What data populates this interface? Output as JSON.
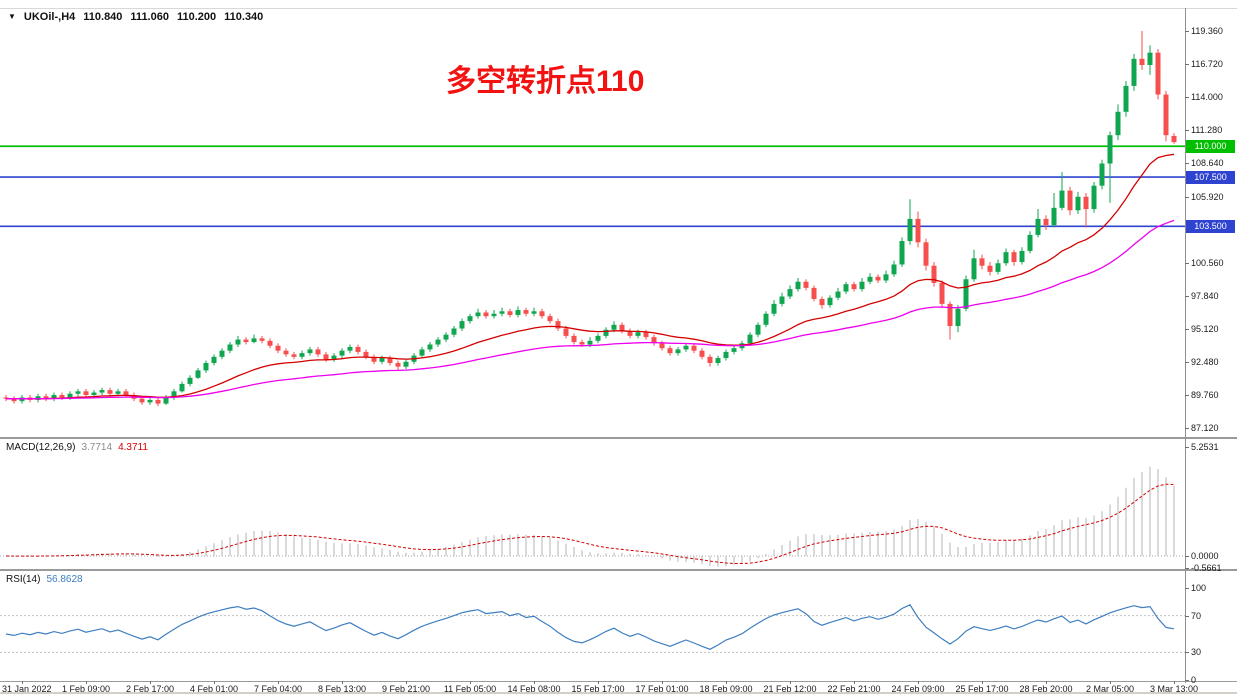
{
  "window": {
    "symbol_period": "UKOil-,H4",
    "open": "110.840",
    "high": "111.060",
    "low": "110.200",
    "close": "110.340",
    "annotation": "多空转折点110"
  },
  "main_chart": {
    "price_axis_labels": [
      "119.360",
      "116.720",
      "114.000",
      "111.280",
      "108.640",
      "105.920",
      "100.560",
      "97.840",
      "95.120",
      "92.480",
      "89.760",
      "87.120"
    ],
    "hlines": [
      {
        "price": 110.0,
        "label": "110.000",
        "color": "#00be00"
      },
      {
        "price": 107.5,
        "label": "107.500",
        "color": "#2e43d0"
      },
      {
        "price": 103.5,
        "label": "103.500",
        "color": "#2e43d0"
      }
    ]
  },
  "macd": {
    "label": "MACD(12,26,9)",
    "main_value": "3.7714",
    "signal_value": "4.3711",
    "fast": 12,
    "slow": 26,
    "signal": 9,
    "axis_labels": [
      {
        "v": 5.2531,
        "text": "5.2531"
      },
      {
        "v": 0,
        "text": "0.0000"
      },
      {
        "v": -0.5661,
        "text": "-0.5661"
      }
    ]
  },
  "rsi": {
    "label": "RSI(14)",
    "value": "56.8628",
    "period": 14,
    "levels": [
      70,
      30
    ],
    "axis_labels": [
      {
        "v": 100,
        "text": "100"
      },
      {
        "v": 70,
        "text": "70"
      },
      {
        "v": 30,
        "text": "30"
      },
      {
        "v": 0,
        "text": "0"
      }
    ]
  },
  "time_axis": [
    {
      "bar": 2,
      "text": "31 Jan 2022"
    },
    {
      "bar": 10,
      "text": "1 Feb 09:00"
    },
    {
      "bar": 18,
      "text": "2 Feb 17:00"
    },
    {
      "bar": 26,
      "text": "4 Feb 01:00"
    },
    {
      "bar": 34,
      "text": "7 Feb 04:00"
    },
    {
      "bar": 42,
      "text": "8 Feb 13:00"
    },
    {
      "bar": 50,
      "text": "9 Feb 21:00"
    },
    {
      "bar": 58,
      "text": "11 Feb 05:00"
    },
    {
      "bar": 66,
      "text": "14 Feb 08:00"
    },
    {
      "bar": 74,
      "text": "15 Feb 17:00"
    },
    {
      "bar": 82,
      "text": "17 Feb 01:00"
    },
    {
      "bar": 90,
      "text": "18 Feb 09:00"
    },
    {
      "bar": 98,
      "text": "21 Feb 12:00"
    },
    {
      "bar": 106,
      "text": "22 Feb 21:00"
    },
    {
      "bar": 114,
      "text": "24 Feb 09:00"
    },
    {
      "bar": 122,
      "text": "25 Feb 17:00"
    },
    {
      "bar": 130,
      "text": "28 Feb 20:00"
    },
    {
      "bar": 138,
      "text": "2 Mar 05:00"
    },
    {
      "bar": 146,
      "text": "3 Mar 13:00"
    }
  ],
  "colors": {
    "candle_up": "#0fa64f",
    "candle_down": "#f74e4e",
    "ma_fast": "#d40000",
    "ma_slow": "#ee00ee",
    "hline_green": "#00be00",
    "hline_blue": "#2e43d0",
    "macd_hist": "#b4b4b4",
    "macd_signal": "#d40000",
    "rsi_line": "#3e7fc1",
    "annotation": "#f31212"
  },
  "chart_data": {
    "type": "candlestick",
    "symbol": "UKOil-,H4",
    "note": "H4 candles [open,high,low,close], left-to-right",
    "candles": [
      [
        89.6,
        89.8,
        89.3,
        89.5
      ],
      [
        89.5,
        89.7,
        89.1,
        89.3
      ],
      [
        89.3,
        89.8,
        89.1,
        89.6
      ],
      [
        89.6,
        89.8,
        89.2,
        89.4
      ],
      [
        89.4,
        89.9,
        89.2,
        89.7
      ],
      [
        89.7,
        89.9,
        89.3,
        89.5
      ],
      [
        89.5,
        90.0,
        89.3,
        89.8
      ],
      [
        89.8,
        90.0,
        89.4,
        89.6
      ],
      [
        89.6,
        90.1,
        89.4,
        89.9
      ],
      [
        89.9,
        90.3,
        89.7,
        90.1
      ],
      [
        90.1,
        90.3,
        89.6,
        89.8
      ],
      [
        89.8,
        90.2,
        89.6,
        90.0
      ],
      [
        90.0,
        90.4,
        89.8,
        90.2
      ],
      [
        90.2,
        90.4,
        89.7,
        89.9
      ],
      [
        89.9,
        90.3,
        89.7,
        90.1
      ],
      [
        90.1,
        90.3,
        89.6,
        89.8
      ],
      [
        89.8,
        90.0,
        89.3,
        89.5
      ],
      [
        89.5,
        89.7,
        89.0,
        89.2
      ],
      [
        89.2,
        89.6,
        89.0,
        89.4
      ],
      [
        89.4,
        89.6,
        88.9,
        89.1
      ],
      [
        89.1,
        89.8,
        89.0,
        89.6
      ],
      [
        89.6,
        90.3,
        89.4,
        90.1
      ],
      [
        90.1,
        90.9,
        90.0,
        90.7
      ],
      [
        90.7,
        91.4,
        90.5,
        91.2
      ],
      [
        91.2,
        92.0,
        91.1,
        91.8
      ],
      [
        91.8,
        92.6,
        91.6,
        92.4
      ],
      [
        92.4,
        93.1,
        92.2,
        92.9
      ],
      [
        92.9,
        93.6,
        92.7,
        93.4
      ],
      [
        93.4,
        94.1,
        93.2,
        93.9
      ],
      [
        93.9,
        94.6,
        93.7,
        94.3
      ],
      [
        94.3,
        94.5,
        93.9,
        94.1
      ],
      [
        94.1,
        94.7,
        94.0,
        94.4
      ],
      [
        94.4,
        94.6,
        94.0,
        94.2
      ],
      [
        94.2,
        94.4,
        93.6,
        93.8
      ],
      [
        93.8,
        94.0,
        93.2,
        93.4
      ],
      [
        93.4,
        93.6,
        92.9,
        93.1
      ],
      [
        93.1,
        93.3,
        92.7,
        92.9
      ],
      [
        92.9,
        93.4,
        92.7,
        93.2
      ],
      [
        93.2,
        93.7,
        93.0,
        93.5
      ],
      [
        93.5,
        93.7,
        92.9,
        93.1
      ],
      [
        93.1,
        93.3,
        92.5,
        92.7
      ],
      [
        92.7,
        93.2,
        92.5,
        93.0
      ],
      [
        93.0,
        93.6,
        92.8,
        93.4
      ],
      [
        93.4,
        93.9,
        93.2,
        93.7
      ],
      [
        93.7,
        93.9,
        93.1,
        93.3
      ],
      [
        93.3,
        93.5,
        92.7,
        92.9
      ],
      [
        92.9,
        93.1,
        92.3,
        92.5
      ],
      [
        92.5,
        93.0,
        92.3,
        92.8
      ],
      [
        92.8,
        93.0,
        92.2,
        92.4
      ],
      [
        92.4,
        92.6,
        91.8,
        92.1
      ],
      [
        92.1,
        92.7,
        91.9,
        92.5
      ],
      [
        92.5,
        93.2,
        92.3,
        93.0
      ],
      [
        93.0,
        93.7,
        92.8,
        93.5
      ],
      [
        93.5,
        94.1,
        93.3,
        93.9
      ],
      [
        93.9,
        94.5,
        93.7,
        94.3
      ],
      [
        94.3,
        94.9,
        94.1,
        94.7
      ],
      [
        94.7,
        95.4,
        94.5,
        95.2
      ],
      [
        95.2,
        96.0,
        95.0,
        95.8
      ],
      [
        95.8,
        96.4,
        95.6,
        96.2
      ],
      [
        96.2,
        96.8,
        96.0,
        96.5
      ],
      [
        96.5,
        96.7,
        96.0,
        96.2
      ],
      [
        96.2,
        96.7,
        96.0,
        96.4
      ],
      [
        96.4,
        96.9,
        96.2,
        96.6
      ],
      [
        96.6,
        96.8,
        96.1,
        96.3
      ],
      [
        96.3,
        97.0,
        96.1,
        96.7
      ],
      [
        96.7,
        96.9,
        96.2,
        96.4
      ],
      [
        96.4,
        96.9,
        96.2,
        96.6
      ],
      [
        96.6,
        96.8,
        96.0,
        96.2
      ],
      [
        96.2,
        96.4,
        95.6,
        95.8
      ],
      [
        95.8,
        96.0,
        95.0,
        95.2
      ],
      [
        95.2,
        95.4,
        94.4,
        94.6
      ],
      [
        94.6,
        94.8,
        93.9,
        94.1
      ],
      [
        94.1,
        94.3,
        93.7,
        93.9
      ],
      [
        93.9,
        94.5,
        93.7,
        94.2
      ],
      [
        94.2,
        94.8,
        94.0,
        94.6
      ],
      [
        94.6,
        95.3,
        94.4,
        95.1
      ],
      [
        95.1,
        95.8,
        94.9,
        95.5
      ],
      [
        95.5,
        95.7,
        94.8,
        95.0
      ],
      [
        95.0,
        95.2,
        94.4,
        94.6
      ],
      [
        94.6,
        95.1,
        94.4,
        94.9
      ],
      [
        94.9,
        95.1,
        94.3,
        94.5
      ],
      [
        94.5,
        94.7,
        93.8,
        94.0
      ],
      [
        94.0,
        94.2,
        93.4,
        93.6
      ],
      [
        93.6,
        93.8,
        93.0,
        93.2
      ],
      [
        93.2,
        93.7,
        93.0,
        93.5
      ],
      [
        93.5,
        94.0,
        93.3,
        93.8
      ],
      [
        93.8,
        94.0,
        93.2,
        93.4
      ],
      [
        93.4,
        93.6,
        92.7,
        92.9
      ],
      [
        92.9,
        93.1,
        92.1,
        92.4
      ],
      [
        92.4,
        93.0,
        92.2,
        92.8
      ],
      [
        92.8,
        93.5,
        92.6,
        93.3
      ],
      [
        93.3,
        93.9,
        93.1,
        93.6
      ],
      [
        93.6,
        94.2,
        93.4,
        94.0
      ],
      [
        94.0,
        94.9,
        93.8,
        94.7
      ],
      [
        94.7,
        95.7,
        94.5,
        95.5
      ],
      [
        95.5,
        96.6,
        95.3,
        96.4
      ],
      [
        96.4,
        97.5,
        96.2,
        97.2
      ],
      [
        97.2,
        98.1,
        97.0,
        97.8
      ],
      [
        97.8,
        98.7,
        97.6,
        98.4
      ],
      [
        98.4,
        99.3,
        98.2,
        99.0
      ],
      [
        99.0,
        99.2,
        98.3,
        98.5
      ],
      [
        98.5,
        98.7,
        97.4,
        97.6
      ],
      [
        97.6,
        97.8,
        96.8,
        97.1
      ],
      [
        97.1,
        97.9,
        96.9,
        97.7
      ],
      [
        97.7,
        98.5,
        97.5,
        98.2
      ],
      [
        98.2,
        99.0,
        98.0,
        98.8
      ],
      [
        98.8,
        99.0,
        98.2,
        98.4
      ],
      [
        98.4,
        99.3,
        98.2,
        99.0
      ],
      [
        99.0,
        99.7,
        98.8,
        99.4
      ],
      [
        99.4,
        99.6,
        98.9,
        99.1
      ],
      [
        99.1,
        99.9,
        98.9,
        99.6
      ],
      [
        99.6,
        100.7,
        99.4,
        100.4
      ],
      [
        100.4,
        102.6,
        100.2,
        102.3
      ],
      [
        102.3,
        105.7,
        102.0,
        104.1
      ],
      [
        104.1,
        104.7,
        101.8,
        102.2
      ],
      [
        102.2,
        102.5,
        99.9,
        100.3
      ],
      [
        100.3,
        100.6,
        98.6,
        98.9
      ],
      [
        98.9,
        99.1,
        96.9,
        97.2
      ],
      [
        97.2,
        97.4,
        94.3,
        95.4
      ],
      [
        95.4,
        97.1,
        94.9,
        96.8
      ],
      [
        96.8,
        99.5,
        96.6,
        99.2
      ],
      [
        99.2,
        101.6,
        99.0,
        100.9
      ],
      [
        100.9,
        101.2,
        100.0,
        100.3
      ],
      [
        100.3,
        100.6,
        99.5,
        99.8
      ],
      [
        99.8,
        100.8,
        99.6,
        100.5
      ],
      [
        100.5,
        101.7,
        100.3,
        101.4
      ],
      [
        101.4,
        101.6,
        100.3,
        100.6
      ],
      [
        100.6,
        101.8,
        100.4,
        101.5
      ],
      [
        101.5,
        103.1,
        101.3,
        102.8
      ],
      [
        102.8,
        104.9,
        102.6,
        104.1
      ],
      [
        104.1,
        104.4,
        103.2,
        103.6
      ],
      [
        103.6,
        106.2,
        103.4,
        105.0
      ],
      [
        105.0,
        107.9,
        104.8,
        106.4
      ],
      [
        106.4,
        106.7,
        104.4,
        104.8
      ],
      [
        104.8,
        106.3,
        104.5,
        105.9
      ],
      [
        105.9,
        106.2,
        103.4,
        104.9
      ],
      [
        104.9,
        107.1,
        104.6,
        106.8
      ],
      [
        106.8,
        108.9,
        106.5,
        108.6
      ],
      [
        108.6,
        111.2,
        105.4,
        110.9
      ],
      [
        110.9,
        113.4,
        110.5,
        112.8
      ],
      [
        112.8,
        115.3,
        112.4,
        114.9
      ],
      [
        114.9,
        117.5,
        114.5,
        117.1
      ],
      [
        117.1,
        119.36,
        116.2,
        116.6
      ],
      [
        116.6,
        118.2,
        115.8,
        117.6
      ],
      [
        117.6,
        117.9,
        113.8,
        114.2
      ],
      [
        114.2,
        114.5,
        110.4,
        110.9
      ],
      [
        110.84,
        111.06,
        110.2,
        110.34
      ]
    ]
  }
}
